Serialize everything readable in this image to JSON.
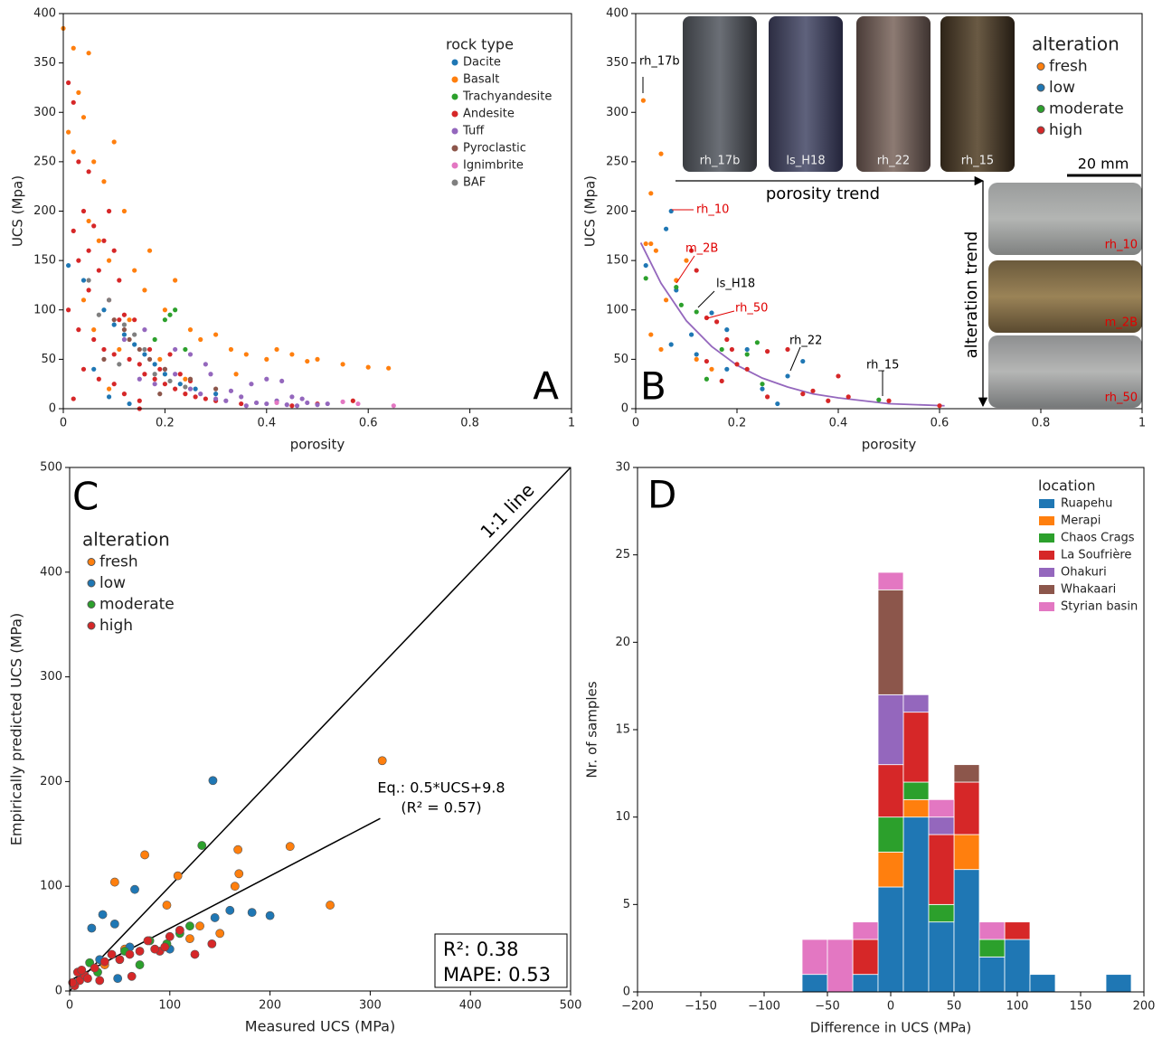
{
  "chart_data": [
    {
      "type": "scatter",
      "panel": "A",
      "x_label": "porosity",
      "y_label": "UCS (Mpa)",
      "xlim": [
        0,
        1
      ],
      "ylim": [
        0,
        400
      ],
      "xticks": [
        0,
        0.2,
        0.4,
        0.6,
        0.8,
        1
      ],
      "yticks": [
        0,
        50,
        100,
        150,
        200,
        250,
        300,
        350,
        400
      ],
      "legend_title": "rock type",
      "legend": "upper right",
      "series": [
        {
          "name": "Dacite",
          "color": "#1f77b4",
          "x": [
            0.01,
            0.04,
            0.08,
            0.1,
            0.12,
            0.14,
            0.16,
            0.18,
            0.2,
            0.23,
            0.26,
            0.13,
            0.09,
            0.3,
            0.06
          ],
          "y": [
            145,
            130,
            100,
            85,
            75,
            65,
            55,
            45,
            35,
            25,
            20,
            5,
            12,
            15,
            40
          ]
        },
        {
          "name": "Basalt",
          "color": "#ff7f0e",
          "x": [
            0,
            0.01,
            0.02,
            0.03,
            0.04,
            0.05,
            0.06,
            0.08,
            0.1,
            0.12,
            0.02,
            0.05,
            0.07,
            0.09,
            0.14,
            0.16,
            0.17,
            0.2,
            0.22,
            0.25,
            0.27,
            0.3,
            0.33,
            0.36,
            0.4,
            0.45,
            0.5,
            0.55,
            0.6,
            0.64,
            0.48,
            0.42,
            0.13,
            0.11,
            0.04,
            0.06,
            0.19,
            0.24,
            0.09,
            0.34
          ],
          "y": [
            385,
            280,
            365,
            320,
            295,
            360,
            250,
            230,
            270,
            200,
            260,
            190,
            170,
            150,
            140,
            120,
            160,
            100,
            130,
            80,
            70,
            75,
            60,
            55,
            50,
            55,
            50,
            45,
            42,
            41,
            48,
            60,
            90,
            60,
            110,
            80,
            50,
            30,
            20,
            35
          ]
        },
        {
          "name": "Trachyandesite",
          "color": "#2ca02c",
          "x": [
            0.21,
            0.22,
            0.2,
            0.18,
            0.24
          ],
          "y": [
            95,
            100,
            90,
            70,
            60
          ]
        },
        {
          "name": "Andesite",
          "color": "#d62728",
          "x": [
            0.01,
            0.02,
            0.03,
            0.05,
            0.04,
            0.06,
            0.02,
            0.08,
            0.1,
            0.03,
            0.07,
            0.05,
            0.09,
            0.11,
            0.12,
            0.14,
            0.01,
            0.03,
            0.06,
            0.08,
            0.1,
            0.13,
            0.15,
            0.16,
            0.18,
            0.2,
            0.22,
            0.24,
            0.26,
            0.28,
            0.04,
            0.07,
            0.1,
            0.12,
            0.15,
            0.15,
            0.02,
            0.3,
            0.35,
            0.5,
            0.57,
            0.45,
            0.05,
            0.09,
            0.11,
            0.17,
            0.19,
            0.21,
            0.23,
            0.25
          ],
          "y": [
            330,
            310,
            250,
            240,
            200,
            185,
            180,
            170,
            160,
            150,
            140,
            120,
            110,
            130,
            95,
            90,
            100,
            80,
            70,
            60,
            55,
            50,
            45,
            35,
            30,
            25,
            20,
            15,
            12,
            10,
            40,
            30,
            25,
            15,
            8,
            0,
            10,
            8,
            5,
            5,
            8,
            3,
            160,
            200,
            90,
            60,
            40,
            55,
            35,
            28
          ]
        },
        {
          "name": "Tuff",
          "color": "#9467bd",
          "x": [
            0.15,
            0.18,
            0.2,
            0.22,
            0.25,
            0.27,
            0.3,
            0.32,
            0.35,
            0.38,
            0.4,
            0.42,
            0.44,
            0.46,
            0.48,
            0.5,
            0.52,
            0.47,
            0.43,
            0.4,
            0.37,
            0.28,
            0.25,
            0.22,
            0.12,
            0.16,
            0.33,
            0.29,
            0.36,
            0.45
          ],
          "y": [
            30,
            25,
            40,
            35,
            20,
            15,
            10,
            8,
            12,
            6,
            5,
            8,
            4,
            3,
            6,
            4,
            5,
            10,
            28,
            30,
            25,
            45,
            55,
            60,
            70,
            80,
            18,
            35,
            3,
            12
          ]
        },
        {
          "name": "Pyroclastic",
          "color": "#8c564b",
          "x": [
            0.1,
            0.12,
            0.15,
            0.17,
            0.2,
            0.13,
            0.25,
            0.3,
            0.08,
            0.19
          ],
          "y": [
            90,
            80,
            60,
            50,
            40,
            70,
            30,
            20,
            50,
            15
          ]
        },
        {
          "name": "Ignimbrite",
          "color": "#e377c2",
          "x": [
            0.58,
            0.65,
            0.42,
            0.55
          ],
          "y": [
            5,
            3,
            6,
            7
          ]
        },
        {
          "name": "BAF",
          "color": "#7f7f7f",
          "x": [
            0.05,
            0.09,
            0.12,
            0.14,
            0.16,
            0.11,
            0.18,
            0.21,
            0.07,
            0.24
          ],
          "y": [
            130,
            110,
            85,
            75,
            60,
            45,
            35,
            28,
            95,
            22
          ]
        }
      ]
    },
    {
      "type": "scatter",
      "panel": "B",
      "x_label": "porosity",
      "y_label": "UCS (Mpa)",
      "xlim": [
        0,
        1
      ],
      "ylim": [
        0,
        400
      ],
      "xticks": [
        0,
        0.2,
        0.4,
        0.6,
        0.8,
        1
      ],
      "yticks": [
        0,
        50,
        100,
        150,
        200,
        250,
        300,
        350,
        400
      ],
      "legend_title": "alteration",
      "legend": "upper right",
      "fit": {
        "color": "#9467bd",
        "x": [
          0.01,
          0.05,
          0.1,
          0.15,
          0.2,
          0.25,
          0.3,
          0.35,
          0.4,
          0.5,
          0.61
        ],
        "y": [
          168,
          127,
          89,
          63,
          44,
          31,
          22,
          15,
          11,
          5,
          3
        ]
      },
      "series": [
        {
          "name": "fresh",
          "color": "#ff7f0e",
          "x": [
            0.015,
            0.03,
            0.02,
            0.03,
            0.05,
            0.04,
            0.08,
            0.06,
            0.1,
            0.05,
            0.03,
            0.12,
            0.15
          ],
          "y": [
            312,
            218,
            167,
            167,
            258,
            160,
            130,
            110,
            150,
            60,
            75,
            50,
            40
          ]
        },
        {
          "name": "low",
          "color": "#1f77b4",
          "x": [
            0.07,
            0.06,
            0.02,
            0.08,
            0.07,
            0.12,
            0.15,
            0.18,
            0.22,
            0.3,
            0.33,
            0.25,
            0.28,
            0.18,
            0.11
          ],
          "y": [
            200,
            182,
            145,
            120,
            65,
            55,
            97,
            80,
            60,
            33,
            48,
            20,
            5,
            40,
            75
          ]
        },
        {
          "name": "moderate",
          "color": "#2ca02c",
          "x": [
            0.02,
            0.08,
            0.09,
            0.12,
            0.17,
            0.22,
            0.24,
            0.25,
            0.48,
            0.14
          ],
          "y": [
            132,
            123,
            105,
            98,
            60,
            55,
            67,
            25,
            9,
            30
          ]
        },
        {
          "name": "high",
          "color": "#d62728",
          "x": [
            0.11,
            0.12,
            0.14,
            0.16,
            0.18,
            0.19,
            0.2,
            0.22,
            0.26,
            0.3,
            0.33,
            0.38,
            0.4,
            0.42,
            0.5,
            0.6,
            0.14,
            0.17,
            0.26,
            0.35
          ],
          "y": [
            160,
            140,
            92,
            88,
            70,
            60,
            45,
            40,
            58,
            60,
            15,
            8,
            33,
            12,
            8,
            3,
            48,
            28,
            12,
            18
          ]
        }
      ],
      "annotations": [
        {
          "text": "rh_17b",
          "color": "#000000"
        },
        {
          "text": "rh_10",
          "color": "#e00000"
        },
        {
          "text": "m_2B",
          "color": "#e00000"
        },
        {
          "text": "ls_H18",
          "color": "#000000"
        },
        {
          "text": "rh_50",
          "color": "#e00000"
        },
        {
          "text": "rh_22",
          "color": "#000000"
        },
        {
          "text": "rh_15",
          "color": "#000000"
        }
      ],
      "photos": [
        "rh_17b",
        "ls_H18",
        "rh_22",
        "rh_15"
      ],
      "side_photos": [
        "rh_10",
        "m_2B",
        "rh_50"
      ],
      "porosity_trend": "porosity trend",
      "alteration_trend": "alteration trend",
      "scale_bar": "20 mm"
    },
    {
      "type": "scatter",
      "panel": "C",
      "x_label": "Measured UCS (MPa)",
      "y_label": "Empirically predicted UCS (MPa)",
      "xlim": [
        0,
        500
      ],
      "ylim": [
        0,
        500
      ],
      "xticks": [
        0,
        100,
        200,
        300,
        400,
        500
      ],
      "yticks": [
        0,
        100,
        200,
        300,
        400,
        500
      ],
      "legend_title": "alteration",
      "legend": "upper left",
      "series": [
        {
          "name": "fresh",
          "color": "#ff7f0e",
          "x": [
            312,
            45,
            75,
            108,
            165,
            168,
            220,
            260,
            97,
            150,
            130,
            35,
            55,
            169,
            120
          ],
          "y": [
            220,
            104,
            130,
            110,
            100,
            135,
            138,
            82,
            82,
            55,
            62,
            25,
            40,
            112,
            50
          ]
        },
        {
          "name": "low",
          "color": "#1f77b4",
          "x": [
            143,
            33,
            45,
            65,
            22,
            160,
            182,
            200,
            145,
            60,
            100,
            48,
            30
          ],
          "y": [
            201,
            73,
            64,
            97,
            60,
            77,
            75,
            72,
            70,
            42,
            40,
            12,
            30
          ]
        },
        {
          "name": "moderate",
          "color": "#2ca02c",
          "x": [
            132,
            120,
            110,
            97,
            70,
            20,
            28,
            80,
            55
          ],
          "y": [
            139,
            62,
            55,
            45,
            25,
            27,
            18,
            48,
            38
          ]
        },
        {
          "name": "high",
          "color": "#d62728",
          "x": [
            10,
            5,
            15,
            25,
            35,
            42,
            50,
            60,
            70,
            78,
            90,
            100,
            110,
            125,
            142,
            8,
            12,
            3,
            18,
            30,
            62,
            85,
            95
          ],
          "y": [
            10,
            5,
            15,
            22,
            28,
            35,
            30,
            35,
            38,
            48,
            38,
            52,
            58,
            35,
            45,
            18,
            20,
            8,
            12,
            10,
            14,
            40,
            42
          ]
        }
      ],
      "lines": [
        {
          "name": "1:1 line",
          "x": [
            0,
            500
          ],
          "y": [
            0,
            500
          ]
        },
        {
          "x": [
            0,
            310
          ],
          "y": [
            9.8,
            164.8
          ]
        }
      ],
      "annotations": [
        "Eq.: 0.5*UCS+9.8",
        "(R² = 0.57)"
      ],
      "stats": [
        "R²: 0.38",
        "MAPE: 0.53"
      ]
    },
    {
      "type": "histogram",
      "panel": "D",
      "x_label": "Difference in UCS (MPa)",
      "y_label": "Nr. of samples",
      "xlim": [
        -200,
        200
      ],
      "ylim": [
        0,
        30
      ],
      "xticks": [
        {
          "value": -200,
          "label": "−200"
        },
        {
          "value": -150,
          "label": "−150"
        },
        {
          "value": -100,
          "label": "−100"
        },
        {
          "value": -50,
          "label": "−50"
        },
        0,
        50,
        100,
        150,
        200
      ],
      "yticks": [
        0,
        5,
        10,
        15,
        20,
        25,
        30
      ],
      "legend_title": "location",
      "legend": "upper right",
      "bins": [
        -70,
        -50,
        -30,
        -10,
        10,
        30,
        50,
        70,
        90,
        110,
        130,
        150,
        170,
        190
      ],
      "series": [
        {
          "name": "Ruapehu",
          "color": "#1f77b4",
          "values": [
            1,
            0,
            1,
            6,
            10,
            4,
            7,
            2,
            3,
            1,
            0,
            0,
            1
          ]
        },
        {
          "name": "Merapi",
          "color": "#ff7f0e",
          "values": [
            0,
            0,
            0,
            2,
            1,
            0,
            2,
            0,
            0,
            0,
            0,
            0,
            0
          ]
        },
        {
          "name": "Chaos Crags",
          "color": "#2ca02c",
          "values": [
            0,
            0,
            0,
            2,
            1,
            1,
            0,
            1,
            0,
            0,
            0,
            0,
            0
          ]
        },
        {
          "name": "La Soufrière",
          "color": "#d62728",
          "values": [
            0,
            0,
            2,
            3,
            4,
            4,
            3,
            0,
            1,
            0,
            0,
            0,
            0
          ]
        },
        {
          "name": "Ohakuri",
          "color": "#9467bd",
          "values": [
            0,
            0,
            0,
            4,
            1,
            1,
            0,
            0,
            0,
            0,
            0,
            0,
            0
          ]
        },
        {
          "name": "Whakaari",
          "color": "#8c564b",
          "values": [
            0,
            0,
            0,
            6,
            0,
            0,
            1,
            0,
            0,
            0,
            0,
            0,
            0
          ]
        },
        {
          "name": "Styrian basin",
          "color": "#e377c2",
          "values": [
            2,
            3,
            1,
            1,
            0,
            1,
            0,
            1,
            0,
            0,
            0,
            0,
            0
          ]
        }
      ]
    }
  ]
}
